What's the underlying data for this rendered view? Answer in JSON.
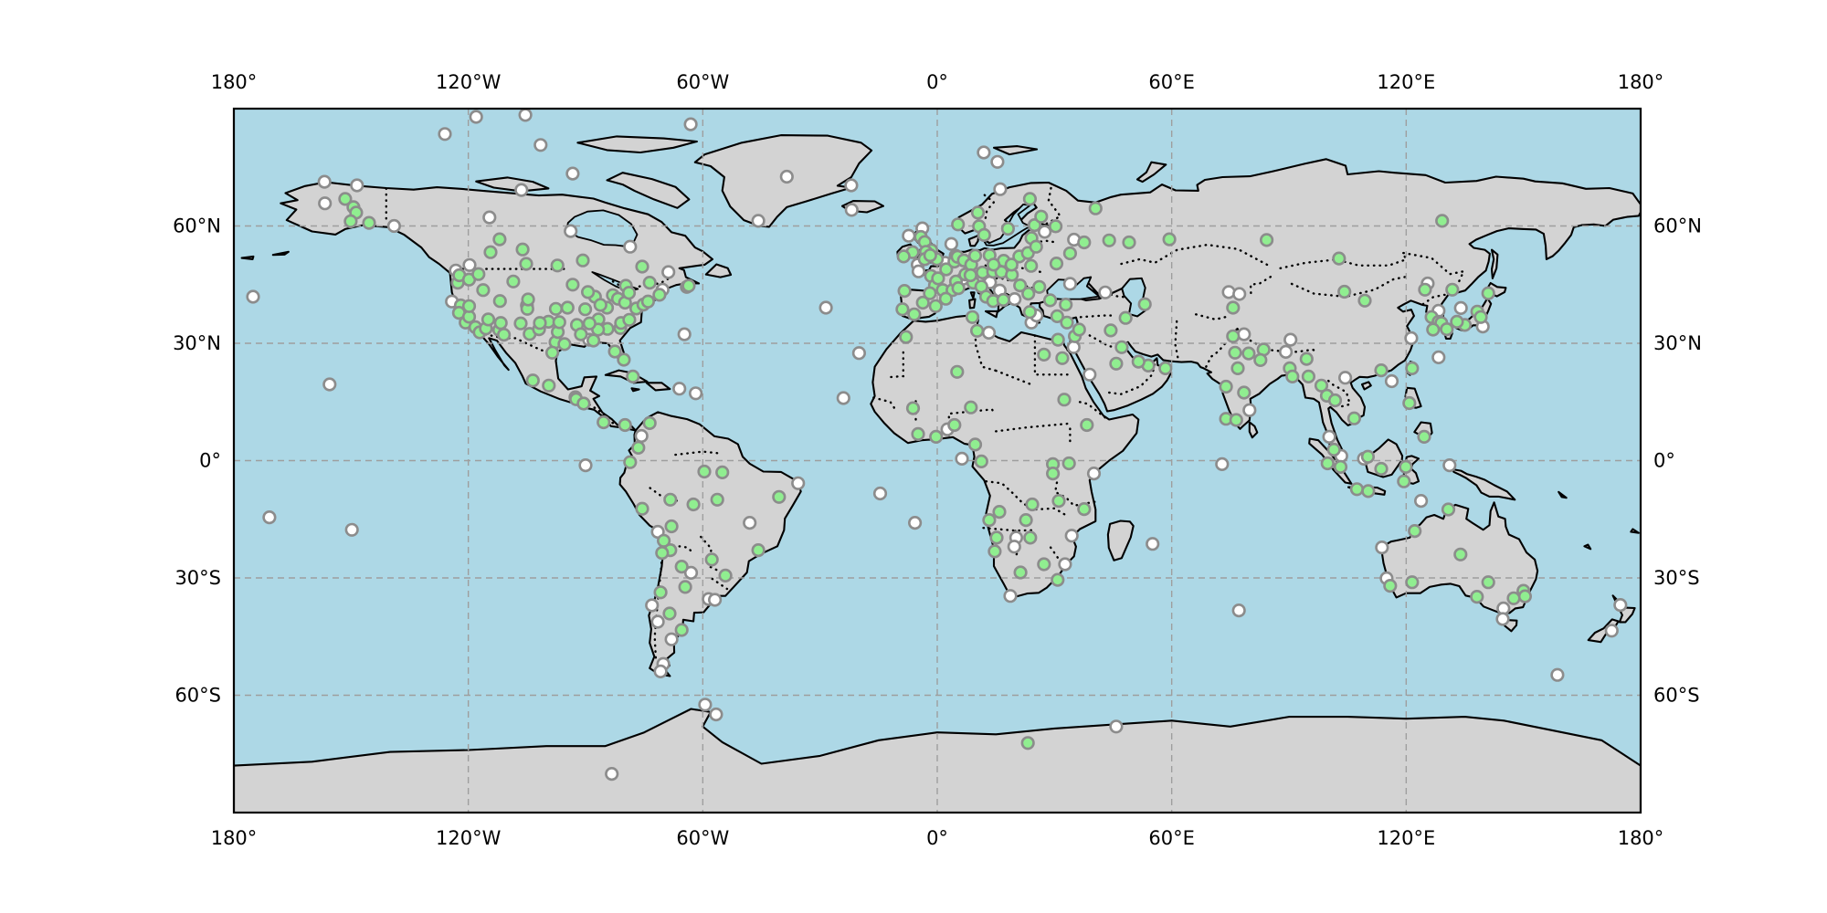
{
  "figure": {
    "kind": "world-map-scatter",
    "projection": "equirectangular",
    "lon_range": [
      -180,
      180
    ],
    "lat_range": [
      -90,
      90
    ]
  },
  "colors": {
    "ocean": "#add8e6",
    "land": "#d3d3d3",
    "coastline": "#000000",
    "gridline": "#9e9e9e",
    "border_dots": "#000000",
    "marker_green": "#90ee90",
    "marker_white": "#ffffff",
    "marker_edge": "#8c8c8c",
    "frame": "#000000",
    "label": "#000000"
  },
  "axis": {
    "x_tick_lons": [
      -180,
      -120,
      -60,
      0,
      60,
      120,
      180
    ],
    "x_tick_labels": [
      "180°",
      "120°W",
      "60°W",
      "0°",
      "60°E",
      "120°E",
      "180°"
    ],
    "y_tick_lats": [
      60,
      30,
      0,
      -30,
      -60
    ],
    "y_tick_labels": [
      "60°N",
      "30°N",
      "0°",
      "30°S",
      "60°S"
    ]
  },
  "gridlines": {
    "lons": [
      -120,
      -60,
      0,
      60,
      120
    ],
    "lats": [
      60,
      30,
      0,
      -30,
      -60
    ],
    "style": "dashed"
  },
  "marker_style": {
    "radius": 6.3,
    "edge_width": 2.6
  },
  "markers": {
    "green": [
      [
        -151.5,
        66.9
      ],
      [
        -149.4,
        64.8
      ],
      [
        -148.7,
        63.4
      ],
      [
        -150.1,
        61.2
      ],
      [
        -145.4,
        60.8
      ],
      [
        -112,
        56.6
      ],
      [
        -114.3,
        53.3
      ],
      [
        -106.1,
        54
      ],
      [
        -105.2,
        50.3
      ],
      [
        -97.2,
        49.9
      ],
      [
        -90.7,
        51.2
      ],
      [
        -75.5,
        49.6
      ],
      [
        -79.7,
        44.7
      ],
      [
        -73.6,
        45.5
      ],
      [
        -63.6,
        44.7
      ],
      [
        -122.7,
        45.5
      ],
      [
        -122.3,
        47.4
      ],
      [
        -119.8,
        46.3
      ],
      [
        -117.4,
        47.7
      ],
      [
        -116.2,
        43.6
      ],
      [
        -121.9,
        39.7
      ],
      [
        -122.4,
        37.8
      ],
      [
        -120.7,
        35.3
      ],
      [
        -119.8,
        36.8
      ],
      [
        -118.2,
        34.1
      ],
      [
        -117.1,
        32.8
      ],
      [
        -115.5,
        33.8
      ],
      [
        -119.8,
        39.5
      ],
      [
        -114.9,
        36.1
      ],
      [
        -112.1,
        33.4
      ],
      [
        -110.9,
        32.2
      ],
      [
        -111.7,
        35.2
      ],
      [
        -111.9,
        40.8
      ],
      [
        -108.5,
        45.8
      ],
      [
        -105,
        39.7
      ],
      [
        -104.9,
        38.8
      ],
      [
        -104.7,
        41.2
      ],
      [
        -106.6,
        35.1
      ],
      [
        -104.3,
        32.4
      ],
      [
        -101.9,
        33.6
      ],
      [
        -99.5,
        35.5
      ],
      [
        -101.7,
        35.2
      ],
      [
        -97.7,
        30.3
      ],
      [
        -95.4,
        29.8
      ],
      [
        -98.5,
        27.6
      ],
      [
        -97.1,
        32.9
      ],
      [
        -96.7,
        35.4
      ],
      [
        -94.6,
        39.1
      ],
      [
        -97.6,
        38.8
      ],
      [
        -92.2,
        34.7
      ],
      [
        -91.2,
        32.3
      ],
      [
        -90.1,
        38.7
      ],
      [
        -93.3,
        45
      ],
      [
        -87.6,
        41.9
      ],
      [
        -89.4,
        43.1
      ],
      [
        -83,
        42.3
      ],
      [
        -81.7,
        41.4
      ],
      [
        -79.9,
        40.4
      ],
      [
        -77,
        38.9
      ],
      [
        -75.2,
        39.9
      ],
      [
        -74,
        40.7
      ],
      [
        -71.1,
        42.4
      ],
      [
        -78.9,
        42.9
      ],
      [
        -84.5,
        39.1
      ],
      [
        -86.2,
        39.8
      ],
      [
        -86.7,
        36.1
      ],
      [
        -84.4,
        33.7
      ],
      [
        -86.8,
        33.5
      ],
      [
        -89,
        35.1
      ],
      [
        -88,
        30.7
      ],
      [
        -81.1,
        33.9
      ],
      [
        -80.9,
        35.2
      ],
      [
        -78.8,
        36
      ],
      [
        -82.5,
        27.9
      ],
      [
        -80.2,
        25.8
      ],
      [
        -99.4,
        19.2
      ],
      [
        -103.5,
        20.5
      ],
      [
        -92.4,
        15.7
      ],
      [
        -90.5,
        14.6
      ],
      [
        -85.4,
        9.8
      ],
      [
        -79.9,
        9.1
      ],
      [
        -77.9,
        21.5
      ],
      [
        -73.6,
        9.6
      ],
      [
        -76.5,
        3.3
      ],
      [
        -78.6,
        -0.4
      ],
      [
        -59.6,
        -2.8
      ],
      [
        -55,
        -3
      ],
      [
        -40.5,
        -9.3
      ],
      [
        -68.3,
        -10
      ],
      [
        -62.4,
        -11.2
      ],
      [
        -56.3,
        -10
      ],
      [
        -75.5,
        -12.3
      ],
      [
        -68,
        -16.8
      ],
      [
        -70,
        -20.5
      ],
      [
        -68.3,
        -22.9
      ],
      [
        -70.4,
        -23.6
      ],
      [
        -65.4,
        -27.1
      ],
      [
        -57.7,
        -25.3
      ],
      [
        -54.2,
        -29.4
      ],
      [
        -45.8,
        -22.9
      ],
      [
        -64.5,
        -32.3
      ],
      [
        -70.8,
        -33.7
      ],
      [
        -68.5,
        -39.1
      ],
      [
        -65.4,
        -43.3
      ],
      [
        -4.2,
        57.2
      ],
      [
        -3.2,
        55.9
      ],
      [
        -1.5,
        53.8
      ],
      [
        -2.9,
        53.4
      ],
      [
        -0.1,
        51.5
      ],
      [
        -3.2,
        51.5
      ],
      [
        -1.8,
        52.5
      ],
      [
        -6.3,
        53.3
      ],
      [
        -8.6,
        52.2
      ],
      [
        2.3,
        48.9
      ],
      [
        -1.6,
        47.2
      ],
      [
        -0.6,
        44.8
      ],
      [
        1.4,
        43.6
      ],
      [
        3.9,
        43.6
      ],
      [
        4.8,
        45.8
      ],
      [
        7.2,
        47.6
      ],
      [
        0.2,
        46.6
      ],
      [
        5.4,
        44.1
      ],
      [
        -8.4,
        43.4
      ],
      [
        -3.7,
        40.4
      ],
      [
        -8.9,
        38.7
      ],
      [
        -5.9,
        37.4
      ],
      [
        -0.4,
        39.5
      ],
      [
        2.2,
        41.4
      ],
      [
        -1.9,
        42.8
      ],
      [
        9.2,
        45.5
      ],
      [
        11.3,
        44.5
      ],
      [
        12.5,
        41.9
      ],
      [
        14.3,
        40.8
      ],
      [
        16.9,
        41.1
      ],
      [
        4.4,
        50.9
      ],
      [
        5.2,
        52.1
      ],
      [
        6.8,
        51.2
      ],
      [
        8.7,
        50.1
      ],
      [
        9.7,
        52.4
      ],
      [
        13.4,
        52.5
      ],
      [
        11.6,
        48.1
      ],
      [
        8.5,
        47.4
      ],
      [
        14.3,
        48.3
      ],
      [
        16.4,
        48.2
      ],
      [
        19.1,
        47.5
      ],
      [
        21,
        52.2
      ],
      [
        17,
        51.1
      ],
      [
        14.4,
        50.1
      ],
      [
        19,
        50.1
      ],
      [
        23.2,
        53.1
      ],
      [
        26.1,
        44.4
      ],
      [
        23.3,
        42.7
      ],
      [
        21.2,
        44.8
      ],
      [
        23.7,
        38
      ],
      [
        28.9,
        41
      ],
      [
        32.9,
        39.9
      ],
      [
        30.7,
        36.9
      ],
      [
        10.7,
        59.9
      ],
      [
        5.3,
        60.4
      ],
      [
        10.4,
        63.4
      ],
      [
        18.1,
        59.3
      ],
      [
        12,
        57.7
      ],
      [
        24.9,
        60.2
      ],
      [
        26.6,
        62.4
      ],
      [
        23.7,
        66.9
      ],
      [
        24.1,
        56.9
      ],
      [
        25.3,
        54.7
      ],
      [
        30.5,
        50.4
      ],
      [
        24,
        49.8
      ],
      [
        30.3,
        59.9
      ],
      [
        37.6,
        55.8
      ],
      [
        49.1,
        55.8
      ],
      [
        44,
        56.3
      ],
      [
        40.5,
        64.5
      ],
      [
        34,
        53
      ],
      [
        -8,
        31.6
      ],
      [
        9,
        36.7
      ],
      [
        10.2,
        33.2
      ],
      [
        5.1,
        22.7
      ],
      [
        -6.2,
        13.4
      ],
      [
        -4.9,
        6.8
      ],
      [
        -0.3,
        6.1
      ],
      [
        4.4,
        9.1
      ],
      [
        8.6,
        13.6
      ],
      [
        9.7,
        4.1
      ],
      [
        11.3,
        -0.2
      ],
      [
        29.6,
        -0.9
      ],
      [
        33.7,
        -0.7
      ],
      [
        38.3,
        9.1
      ],
      [
        29.6,
        -3.3
      ],
      [
        15.9,
        -13.1
      ],
      [
        13.3,
        -15.2
      ],
      [
        24.3,
        -11.2
      ],
      [
        31.1,
        -10.3
      ],
      [
        37.6,
        -12.4
      ],
      [
        22.7,
        -15.2
      ],
      [
        15.2,
        -19.7
      ],
      [
        23.8,
        -19.7
      ],
      [
        14.7,
        -23.2
      ],
      [
        27.3,
        -26.5
      ],
      [
        21.3,
        -28.6
      ],
      [
        30.8,
        -30.5
      ],
      [
        30.9,
        30.9
      ],
      [
        32,
        26.2
      ],
      [
        27.3,
        27.1
      ],
      [
        32.5,
        15.6
      ],
      [
        48.2,
        36.5
      ],
      [
        44.4,
        33.3
      ],
      [
        47.2,
        29
      ],
      [
        45.8,
        24.8
      ],
      [
        54,
        24.3
      ],
      [
        58.4,
        23.6
      ],
      [
        51.5,
        25.3
      ],
      [
        35.2,
        31.8
      ],
      [
        33.2,
        35.3
      ],
      [
        36.3,
        33.5
      ],
      [
        59.4,
        56.6
      ],
      [
        84.3,
        56.4
      ],
      [
        102.8,
        51.7
      ],
      [
        129.2,
        61.3
      ],
      [
        53.1,
        40
      ],
      [
        75.7,
        39.1
      ],
      [
        75.7,
        31.8
      ],
      [
        76.2,
        27.6
      ],
      [
        79.7,
        27.4
      ],
      [
        83.5,
        28.4
      ],
      [
        82.7,
        25.7
      ],
      [
        76.9,
        23.6
      ],
      [
        73.9,
        18.9
      ],
      [
        78.5,
        17.4
      ],
      [
        90.2,
        23.6
      ],
      [
        90.9,
        21.5
      ],
      [
        73.9,
        10.7
      ],
      [
        76.5,
        10.4
      ],
      [
        95,
        21.5
      ],
      [
        98.3,
        19.2
      ],
      [
        99.7,
        16.6
      ],
      [
        101.8,
        15.4
      ],
      [
        106.7,
        10.8
      ],
      [
        94.5,
        26
      ],
      [
        104.2,
        43.2
      ],
      [
        109.4,
        40.9
      ],
      [
        113.6,
        23.1
      ],
      [
        121.5,
        23.6
      ],
      [
        124.8,
        43.7
      ],
      [
        131.8,
        43.7
      ],
      [
        126.5,
        36.7
      ],
      [
        128.3,
        35.5
      ],
      [
        129,
        35.2
      ],
      [
        126.9,
        33.5
      ],
      [
        141,
        42.8
      ],
      [
        138.2,
        38.1
      ],
      [
        139.1,
        36.7
      ],
      [
        135,
        34.7
      ],
      [
        130.4,
        33.6
      ],
      [
        133,
        35.5
      ],
      [
        120.8,
        14.7
      ],
      [
        124.6,
        6.1
      ],
      [
        101.5,
        2.8
      ],
      [
        99.9,
        -0.7
      ],
      [
        103.2,
        -1.6
      ],
      [
        107.4,
        -7.3
      ],
      [
        110.3,
        -7.8
      ],
      [
        110.2,
        1
      ],
      [
        113.6,
        -2.1
      ],
      [
        119.9,
        -1.6
      ],
      [
        119.4,
        -5.3
      ],
      [
        130.8,
        -12.5
      ],
      [
        122.2,
        -18
      ],
      [
        133.9,
        -24
      ],
      [
        115.9,
        -32
      ],
      [
        121.5,
        -31.1
      ],
      [
        138.1,
        -34.8
      ],
      [
        141,
        -31.1
      ],
      [
        150,
        -33.3
      ],
      [
        150.4,
        -34.7
      ],
      [
        147.5,
        -35.2
      ],
      [
        23.2,
        -72.2
      ]
    ],
    "white": [
      [
        -156.8,
        71.3
      ],
      [
        -148.5,
        70.4
      ],
      [
        -156.7,
        65.8
      ],
      [
        -139,
        60
      ],
      [
        -114.6,
        62.2
      ],
      [
        -106.4,
        69.2
      ],
      [
        -93.8,
        58.7
      ],
      [
        -78.6,
        54.7
      ],
      [
        -68.8,
        48.2
      ],
      [
        -64.1,
        44.4
      ],
      [
        -123.2,
        48.6
      ],
      [
        -119.7,
        50
      ],
      [
        -124.2,
        40.7
      ],
      [
        -70.3,
        43.7
      ],
      [
        -89.1,
        30.9
      ],
      [
        -64.7,
        32.3
      ],
      [
        -66,
        18.4
      ],
      [
        -61.8,
        17.2
      ],
      [
        -75.7,
        6.3
      ],
      [
        -126,
        83.5
      ],
      [
        -118,
        87.9
      ],
      [
        -105.4,
        88.4
      ],
      [
        -101.5,
        80.7
      ],
      [
        -93.3,
        73.4
      ],
      [
        -63.1,
        86
      ],
      [
        -45.8,
        61.3
      ],
      [
        -38.5,
        72.6
      ],
      [
        -22,
        70.4
      ],
      [
        -90,
        -1.2
      ],
      [
        -71.5,
        -18.2
      ],
      [
        -63,
        -28.7
      ],
      [
        -58.5,
        -35.4
      ],
      [
        -56.9,
        -35.6
      ],
      [
        -73,
        -37
      ],
      [
        -71.5,
        -41.2
      ],
      [
        -68,
        -45.7
      ],
      [
        -70.1,
        -52
      ],
      [
        -70.8,
        -53.9
      ],
      [
        -48,
        -15.9
      ],
      [
        -35.6,
        -5.8
      ],
      [
        -92.6,
        16.2
      ],
      [
        -28.5,
        39.1
      ],
      [
        -20,
        27.5
      ],
      [
        -24,
        16
      ],
      [
        -14.6,
        -8.4
      ],
      [
        -5.7,
        -15.9
      ],
      [
        -21.9,
        64.1
      ],
      [
        -3.8,
        59.4
      ],
      [
        -7.3,
        57.5
      ],
      [
        -5,
        50.1
      ],
      [
        -4.8,
        48.4
      ],
      [
        3.6,
        55.4
      ],
      [
        4.7,
        52.4
      ],
      [
        2,
        50.6
      ],
      [
        6.6,
        46.5
      ],
      [
        9.8,
        46.3
      ],
      [
        11,
        47.3
      ],
      [
        7.8,
        48
      ],
      [
        13.5,
        45.6
      ],
      [
        16,
        43.5
      ],
      [
        19.8,
        41.3
      ],
      [
        24.1,
        35.3
      ],
      [
        25.4,
        37.1
      ],
      [
        34,
        45.2
      ],
      [
        43,
        43
      ],
      [
        11.9,
        78.8
      ],
      [
        15.4,
        76.4
      ],
      [
        16.1,
        69.4
      ],
      [
        35,
        56.5
      ],
      [
        27.5,
        58.5
      ],
      [
        2.6,
        8
      ],
      [
        6.3,
        0.5
      ],
      [
        20.2,
        -19.7
      ],
      [
        19.7,
        -22
      ],
      [
        32.7,
        -26.5
      ],
      [
        18.7,
        -34.6
      ],
      [
        34.4,
        -19.2
      ],
      [
        39,
        22
      ],
      [
        34.9,
        29
      ],
      [
        40.1,
        -3.3
      ],
      [
        13.2,
        32.7
      ],
      [
        74.6,
        43.1
      ],
      [
        77.3,
        42.6
      ],
      [
        78.5,
        32.3
      ],
      [
        90.4,
        30.9
      ],
      [
        89.2,
        27.8
      ],
      [
        125.5,
        45.3
      ],
      [
        121.3,
        31.3
      ],
      [
        116.3,
        20.3
      ],
      [
        128.3,
        38.3
      ],
      [
        134,
        39
      ],
      [
        139.6,
        34.3
      ],
      [
        128.3,
        26.4
      ],
      [
        104.4,
        21.2
      ],
      [
        79.9,
        12.9
      ],
      [
        100.3,
        6.1
      ],
      [
        103.4,
        1.2
      ],
      [
        109.2,
        0.5
      ],
      [
        131.1,
        -1.2
      ],
      [
        123.8,
        -10.3
      ],
      [
        72.9,
        -0.9
      ],
      [
        55.1,
        -21.3
      ],
      [
        77.2,
        -38.3
      ],
      [
        113.8,
        -22.2
      ],
      [
        115,
        -30.1
      ],
      [
        144.9,
        -37.8
      ],
      [
        144.7,
        -40.5
      ],
      [
        174.8,
        -36.9
      ],
      [
        172.6,
        -43.5
      ],
      [
        158.7,
        -54.8
      ],
      [
        -155.5,
        19.5
      ],
      [
        -170.9,
        -14.5
      ],
      [
        -149.8,
        -17.7
      ],
      [
        -175.1,
        41.9
      ],
      [
        -59.4,
        -62.4
      ],
      [
        -56.6,
        -64.9
      ],
      [
        -83.3,
        -80.1
      ],
      [
        45.8,
        -68
      ]
    ]
  }
}
